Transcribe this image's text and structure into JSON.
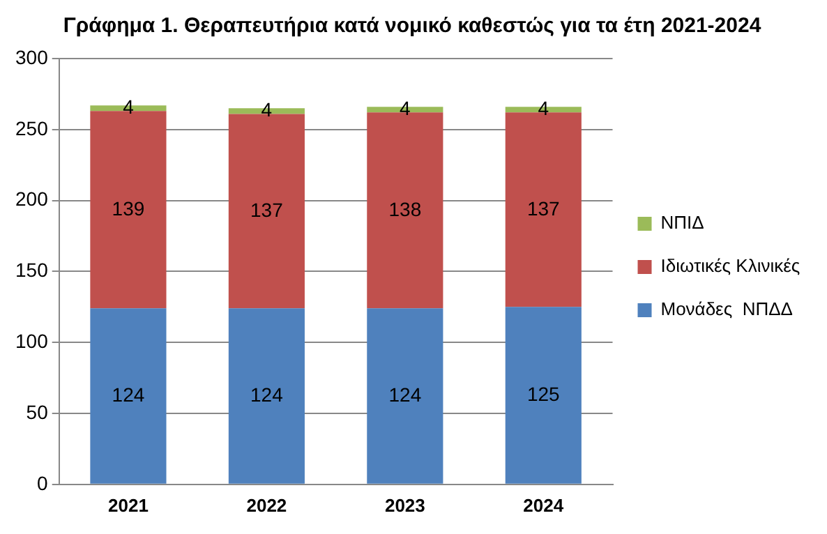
{
  "chart_data": {
    "type": "bar",
    "title": "Γράφημα 1. Θεραπευτήρια κατά νομικό καθεστώς για τα έτη 2021-2024",
    "categories": [
      "2021",
      "2022",
      "2023",
      "2024"
    ],
    "series": [
      {
        "name": "Μονάδες  ΝΠΔΔ",
        "color": "#4f81bd",
        "values": [
          124,
          124,
          124,
          125
        ]
      },
      {
        "name": "Ιδιωτικές Κλινικές",
        "color": "#c0504d",
        "values": [
          139,
          137,
          138,
          137
        ]
      },
      {
        "name": "ΝΠΙΔ",
        "color": "#9bbb59",
        "values": [
          4,
          4,
          4,
          4
        ]
      }
    ],
    "stacked": true,
    "ylim": [
      0,
      300
    ],
    "yticks": [
      0,
      50,
      100,
      150,
      200,
      250,
      300
    ],
    "grid": "y",
    "legend": "right",
    "data_labels": true
  }
}
